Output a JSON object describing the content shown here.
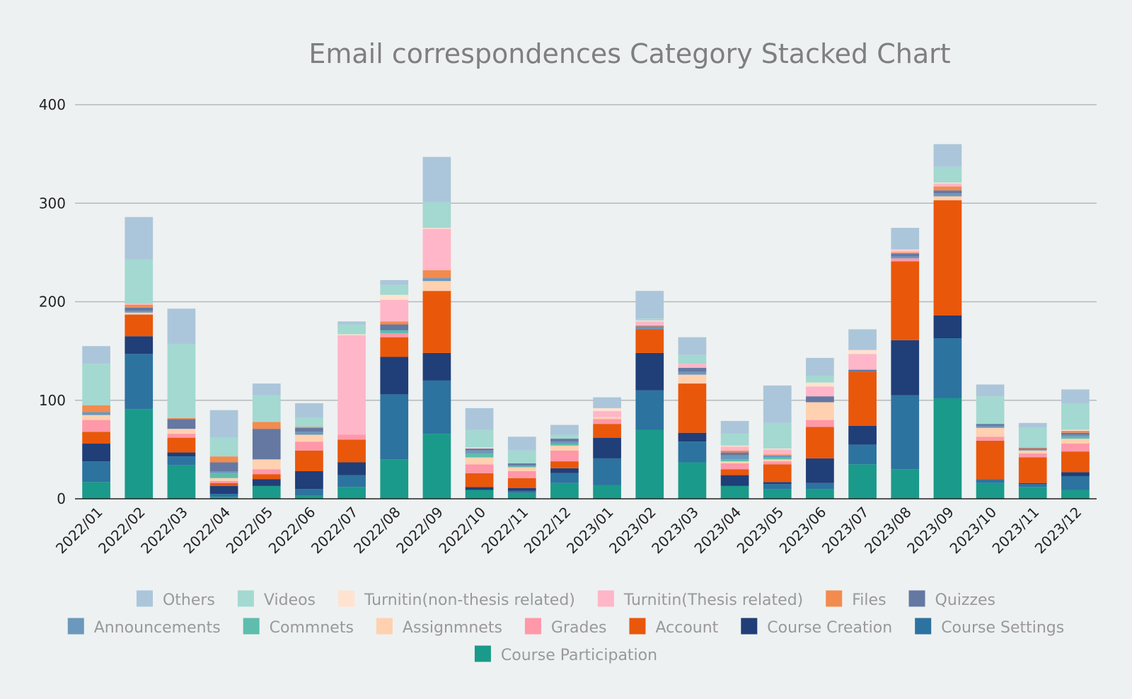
{
  "chart_data": {
    "type": "bar",
    "stacked": true,
    "title": "Email correspondences Category Stacked Chart",
    "xlabel": "",
    "ylabel": "",
    "ylim": [
      0,
      400
    ],
    "yticks": [
      0,
      100,
      200,
      300,
      400
    ],
    "grid": true,
    "legend_position": "bottom",
    "categories": [
      "2022/01",
      "2022/02",
      "2022/03",
      "2022/04",
      "2022/05",
      "2022/06",
      "2022/07",
      "2022/08",
      "2022/09",
      "2022/10",
      "2022/11",
      "2022/12",
      "2023/01",
      "2023/02",
      "2023/03",
      "2023/04",
      "2023/05",
      "2023/06",
      "2023/07",
      "2023/08",
      "2023/09",
      "2023/10",
      "2023/11",
      "2023/12"
    ],
    "series": [
      {
        "name": "Course Participation",
        "color": "#1a9a8a",
        "values": [
          17,
          91,
          34,
          2,
          13,
          3,
          12,
          40,
          66,
          9,
          6,
          16,
          14,
          70,
          37,
          13,
          10,
          10,
          35,
          30,
          102,
          16,
          12,
          9
        ]
      },
      {
        "name": "Course Settings",
        "color": "#2c73a0",
        "values": [
          21,
          56,
          9,
          3,
          0,
          7,
          12,
          66,
          54,
          0,
          2,
          10,
          27,
          40,
          21,
          0,
          5,
          6,
          20,
          75,
          61,
          4,
          3,
          14
        ]
      },
      {
        "name": "Course Creation",
        "color": "#203e78",
        "values": [
          18,
          18,
          4,
          8,
          7,
          18,
          13,
          38,
          28,
          3,
          3,
          5,
          21,
          38,
          9,
          11,
          2,
          25,
          19,
          56,
          23,
          0,
          1,
          4
        ]
      },
      {
        "name": "Account",
        "color": "#e9570b",
        "values": [
          12,
          22,
          15,
          3,
          5,
          21,
          23,
          20,
          63,
          14,
          10,
          7,
          14,
          24,
          50,
          6,
          18,
          32,
          55,
          80,
          117,
          39,
          26,
          21
        ]
      },
      {
        "name": "Grades",
        "color": "#ff98a8",
        "values": [
          12,
          0,
          4,
          2,
          5,
          9,
          5,
          4,
          0,
          9,
          7,
          11,
          5,
          0,
          0,
          6,
          3,
          7,
          0,
          3,
          0,
          4,
          4,
          8
        ]
      },
      {
        "name": "Assignmnets",
        "color": "#ffd1b0",
        "values": [
          5,
          2,
          5,
          3,
          10,
          7,
          0,
          0,
          10,
          7,
          4,
          5,
          2,
          0,
          9,
          2,
          2,
          18,
          0,
          0,
          4,
          9,
          3,
          5
        ]
      },
      {
        "name": "Commnets",
        "color": "#5ebdac",
        "values": [
          0,
          0,
          0,
          5,
          0,
          0,
          0,
          3,
          0,
          4,
          1,
          2,
          0,
          0,
          0,
          2,
          2,
          0,
          0,
          0,
          0,
          0,
          0,
          2
        ]
      },
      {
        "name": "Announcements",
        "color": "#6b98bc",
        "values": [
          3,
          2,
          0,
          2,
          0,
          3,
          0,
          0,
          3,
          3,
          1,
          2,
          0,
          2,
          3,
          4,
          2,
          0,
          0,
          2,
          3,
          2,
          1,
          2
        ]
      },
      {
        "name": "Quizzes",
        "color": "#6478a2",
        "values": [
          0,
          3,
          10,
          9,
          31,
          4,
          0,
          6,
          0,
          2,
          2,
          3,
          0,
          1,
          4,
          3,
          0,
          6,
          2,
          3,
          3,
          2,
          1,
          2
        ]
      },
      {
        "name": "Files",
        "color": "#f38b4e",
        "values": [
          7,
          3,
          1,
          6,
          7,
          1,
          0,
          3,
          8,
          0,
          0,
          0,
          0,
          1,
          0,
          2,
          1,
          0,
          0,
          1,
          4,
          0,
          1,
          2
        ]
      },
      {
        "name": "Turnitin(Thesis related)",
        "color": "#ffb6c8",
        "values": [
          0,
          1,
          0,
          0,
          0,
          0,
          101,
          22,
          42,
          0,
          0,
          0,
          6,
          4,
          4,
          4,
          5,
          10,
          16,
          2,
          3,
          0,
          0,
          0
        ]
      },
      {
        "name": "Turnitin(non-thesis related)",
        "color": "#ffe3d0",
        "values": [
          0,
          0,
          0,
          0,
          0,
          0,
          1,
          5,
          1,
          1,
          0,
          0,
          3,
          1,
          0,
          1,
          1,
          4,
          4,
          1,
          1,
          0,
          0,
          1
        ]
      },
      {
        "name": "Videos",
        "color": "#a3d9d1",
        "values": [
          42,
          45,
          75,
          19,
          27,
          9,
          10,
          10,
          26,
          18,
          13,
          4,
          0,
          2,
          9,
          12,
          26,
          7,
          0,
          0,
          16,
          28,
          20,
          27
        ]
      },
      {
        "name": "Others",
        "color": "#abc6da",
        "values": [
          18,
          43,
          36,
          28,
          12,
          15,
          3,
          5,
          46,
          22,
          14,
          10,
          11,
          28,
          18,
          13,
          38,
          18,
          21,
          22,
          23,
          12,
          5,
          14
        ]
      }
    ]
  }
}
